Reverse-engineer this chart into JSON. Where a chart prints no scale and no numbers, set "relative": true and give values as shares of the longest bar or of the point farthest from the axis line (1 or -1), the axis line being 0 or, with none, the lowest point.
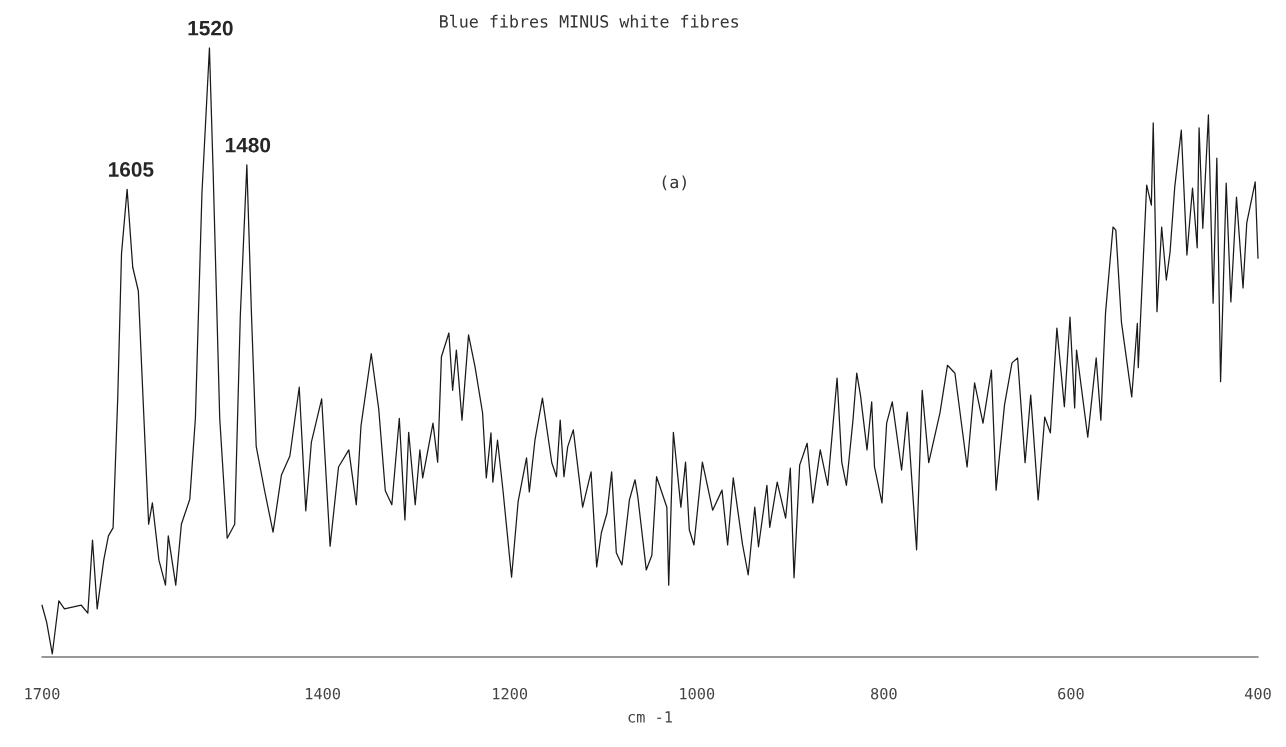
{
  "chart_data": {
    "type": "line",
    "title": "Blue fibres MINUS white fibres",
    "xlabel": "cm -1",
    "relative": true,
    "xlim": [
      1700,
      400
    ],
    "xticks": [
      1700,
      1400,
      1200,
      1000,
      800,
      600,
      400
    ],
    "grid": false,
    "legend": false,
    "marker": "none",
    "line_style": "solid",
    "annotations": [
      {
        "text": "1605",
        "x": 1605,
        "y": 0.768
      },
      {
        "text": "1520",
        "x": 1520,
        "y": 1.0
      },
      {
        "text": "1480",
        "x": 1480,
        "y": 0.808
      },
      "(a)"
    ],
    "series": [
      {
        "color": "#1a1a1a",
        "x": [
          1700,
          1695,
          1689,
          1682,
          1676,
          1658,
          1651,
          1646,
          1641,
          1634,
          1629,
          1624,
          1619,
          1615,
          1609,
          1603,
          1597,
          1593,
          1586,
          1582,
          1575,
          1568,
          1565,
          1557,
          1551,
          1542,
          1536,
          1529,
          1521,
          1517,
          1510,
          1502,
          1494,
          1488,
          1481,
          1476,
          1471,
          1462,
          1453,
          1444,
          1435,
          1425,
          1418,
          1412,
          1401,
          1392,
          1383,
          1372,
          1364,
          1359,
          1348,
          1340,
          1333,
          1326,
          1318,
          1312,
          1308,
          1301,
          1296,
          1293,
          1282,
          1277,
          1273,
          1265,
          1261,
          1257,
          1251,
          1244,
          1237,
          1229,
          1225,
          1220,
          1218,
          1213,
          1207,
          1198,
          1191,
          1182,
          1179,
          1173,
          1165,
          1155,
          1150,
          1146,
          1142,
          1138,
          1132,
          1122,
          1113,
          1107,
          1102,
          1096,
          1091,
          1086,
          1080,
          1072,
          1066,
          1063,
          1054,
          1048,
          1043,
          1032,
          1030,
          1025,
          1017,
          1012,
          1008,
          1003,
          994,
          983,
          973,
          967,
          961,
          951,
          945,
          938,
          934,
          925,
          922,
          914,
          905,
          900,
          896,
          890,
          882,
          876,
          868,
          860,
          850,
          845,
          840,
          833,
          829,
          825,
          818,
          813,
          810,
          802,
          797,
          791,
          781,
          775,
          765,
          759,
          752,
          740,
          732,
          724,
          711,
          703,
          694,
          685,
          680,
          671,
          663,
          657,
          649,
          643,
          635,
          628,
          622,
          615,
          607,
          601,
          596,
          594,
          582,
          573,
          568,
          563,
          555,
          552,
          546,
          535,
          529,
          528,
          519,
          514,
          512,
          508,
          503,
          498,
          494,
          489,
          482,
          476,
          470,
          465,
          463,
          459,
          453,
          448,
          444,
          440,
          434,
          429,
          423,
          416,
          412,
          403,
          400
        ],
        "values": [
          0.085,
          0.057,
          0.005,
          0.092,
          0.079,
          0.085,
          0.072,
          0.192,
          0.079,
          0.159,
          0.199,
          0.212,
          0.427,
          0.662,
          0.768,
          0.64,
          0.601,
          0.46,
          0.218,
          0.253,
          0.159,
          0.118,
          0.199,
          0.118,
          0.218,
          0.259,
          0.392,
          0.762,
          1.0,
          0.795,
          0.392,
          0.195,
          0.218,
          0.56,
          0.808,
          0.56,
          0.346,
          0.273,
          0.205,
          0.299,
          0.33,
          0.443,
          0.24,
          0.353,
          0.424,
          0.182,
          0.312,
          0.34,
          0.25,
          0.379,
          0.498,
          0.407,
          0.273,
          0.25,
          0.392,
          0.225,
          0.369,
          0.25,
          0.34,
          0.294,
          0.384,
          0.32,
          0.493,
          0.532,
          0.438,
          0.504,
          0.389,
          0.529,
          0.476,
          0.401,
          0.294,
          0.368,
          0.287,
          0.356,
          0.271,
          0.131,
          0.255,
          0.327,
          0.271,
          0.356,
          0.425,
          0.319,
          0.296,
          0.389,
          0.296,
          0.345,
          0.373,
          0.246,
          0.304,
          0.148,
          0.204,
          0.236,
          0.304,
          0.171,
          0.151,
          0.258,
          0.291,
          0.263,
          0.143,
          0.167,
          0.296,
          0.246,
          0.118,
          0.369,
          0.246,
          0.32,
          0.209,
          0.184,
          0.32,
          0.241,
          0.274,
          0.184,
          0.294,
          0.184,
          0.135,
          0.246,
          0.181,
          0.282,
          0.213,
          0.287,
          0.228,
          0.31,
          0.13,
          0.315,
          0.351,
          0.253,
          0.34,
          0.282,
          0.458,
          0.32,
          0.282,
          0.389,
          0.466,
          0.43,
          0.34,
          0.419,
          0.312,
          0.253,
          0.384,
          0.419,
          0.307,
          0.402,
          0.176,
          0.438,
          0.319,
          0.401,
          0.479,
          0.466,
          0.312,
          0.45,
          0.384,
          0.471,
          0.274,
          0.414,
          0.483,
          0.491,
          0.319,
          0.43,
          0.258,
          0.394,
          0.368,
          0.54,
          0.411,
          0.558,
          0.409,
          0.504,
          0.361,
          0.491,
          0.389,
          0.565,
          0.706,
          0.701,
          0.55,
          0.427,
          0.548,
          0.475,
          0.775,
          0.742,
          0.877,
          0.567,
          0.706,
          0.619,
          0.665,
          0.772,
          0.865,
          0.66,
          0.77,
          0.672,
          0.869,
          0.704,
          0.89,
          0.581,
          0.819,
          0.452,
          0.778,
          0.583,
          0.755,
          0.606,
          0.713,
          0.78,
          0.655
        ]
      }
    ]
  }
}
